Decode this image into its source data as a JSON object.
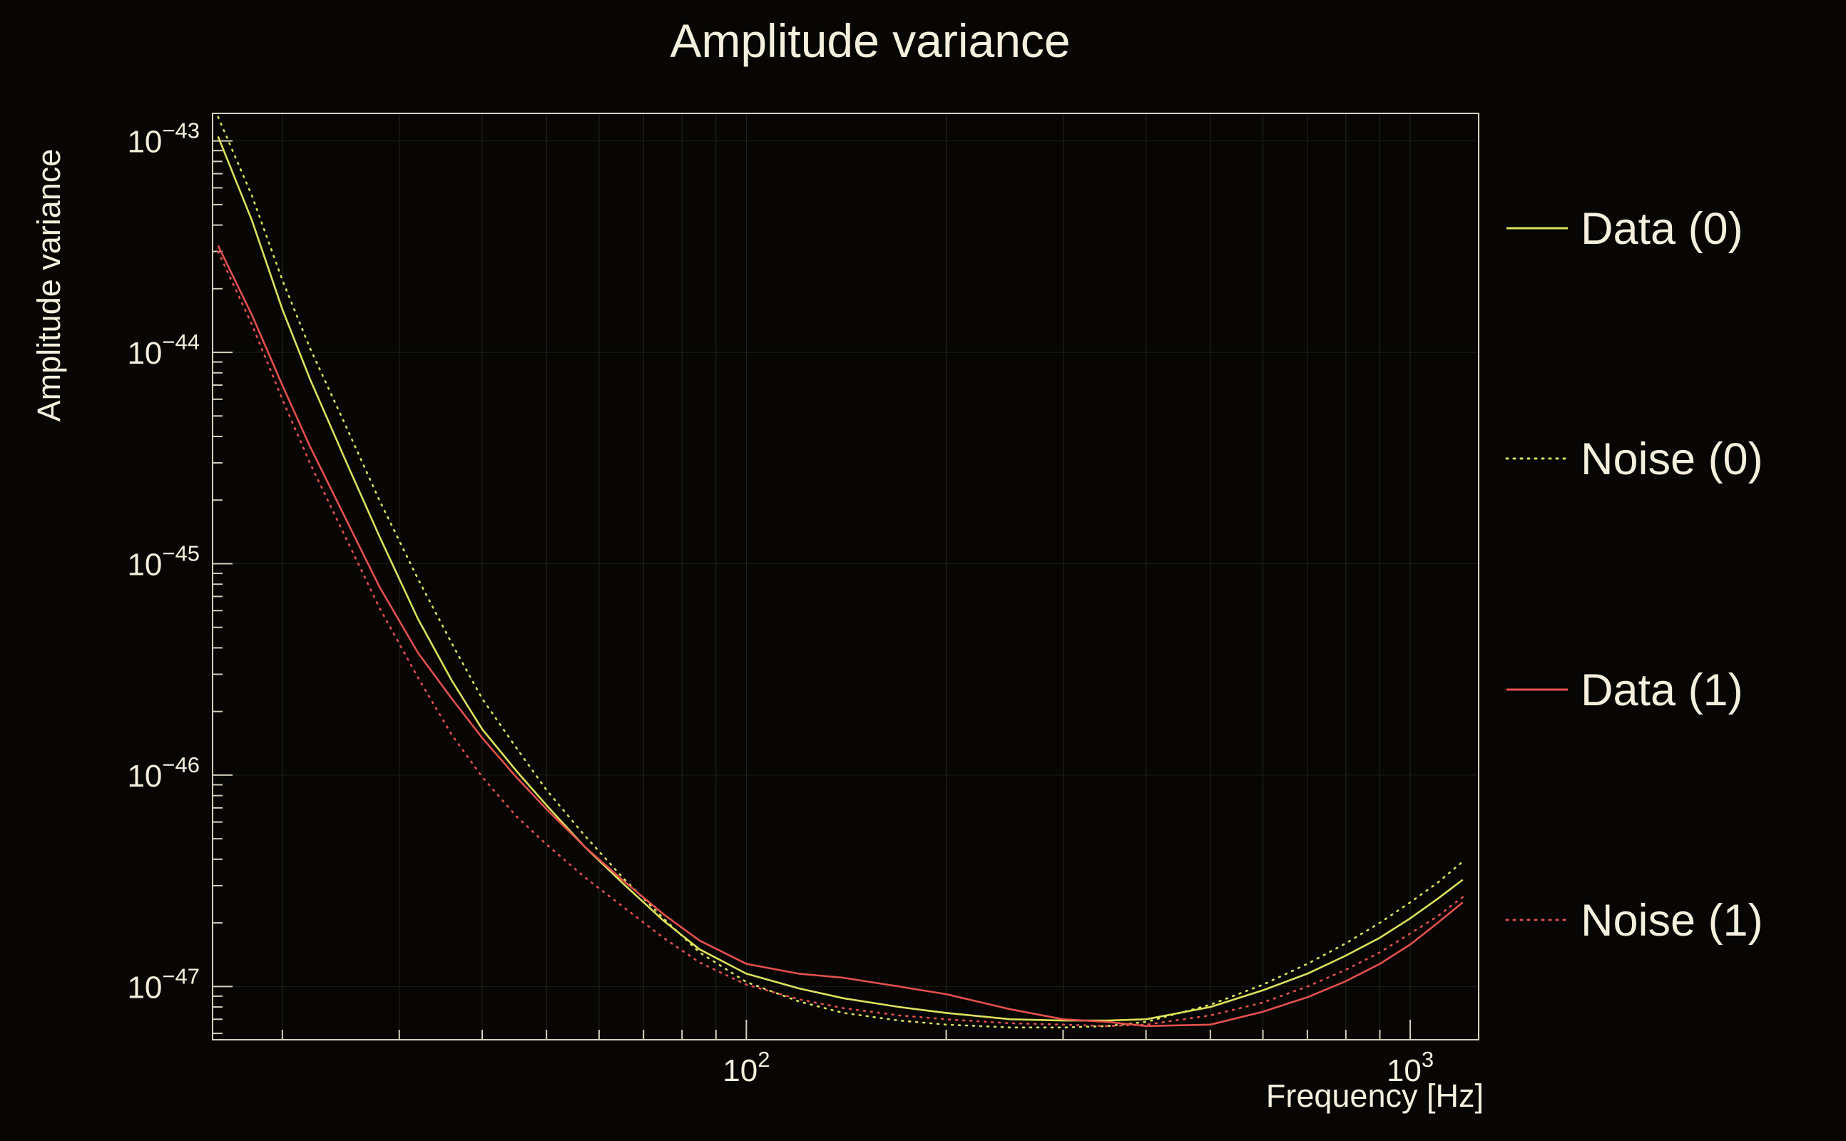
{
  "title": "Amplitude variance",
  "colors": {
    "background": "#070604",
    "text": "#f5efdd",
    "axis": "#d6d0bd",
    "grid": "#242420",
    "grid_h": "#1c1c18",
    "yellow": "#dce15c",
    "red": "#e4504e"
  },
  "chart_data": {
    "type": "line",
    "title": "Amplitude variance",
    "xlabel": "Frequency [Hz]",
    "ylabel": "Amplitude variance",
    "xscale": "log",
    "yscale": "log",
    "xlim": [
      15.7,
      1268
    ],
    "ylim": [
      5.6e-48,
      1.35e-43
    ],
    "x_ticks": [
      {
        "value": 100,
        "exp": "2"
      },
      {
        "value": 1000,
        "exp": "3"
      }
    ],
    "y_ticks": [
      {
        "value": 1e-43,
        "exp": "−43"
      },
      {
        "value": 1e-44,
        "exp": "−44"
      },
      {
        "value": 1e-45,
        "exp": "−45"
      },
      {
        "value": 1e-46,
        "exp": "−46"
      },
      {
        "value": 1e-47,
        "exp": "−47"
      }
    ],
    "legend_position": "right",
    "x": [
      16,
      18,
      20,
      22,
      25,
      28,
      32,
      36,
      40,
      45,
      50,
      57,
      65,
      75,
      85,
      100,
      120,
      140,
      170,
      200,
      250,
      300,
      350,
      400,
      500,
      600,
      700,
      800,
      900,
      1000,
      1100,
      1200
    ],
    "series": [
      {
        "name": "Data (0)",
        "color": "#dce15c",
        "style": "solid",
        "values": [
          1.05e-43,
          4.2e-44,
          1.6e-44,
          7.5e-45,
          3e-45,
          1.35e-45,
          5.5e-46,
          2.8e-46,
          1.65e-46,
          1.05e-46,
          7.2e-47,
          4.6e-47,
          3.1e-47,
          2.05e-47,
          1.5e-47,
          1.15e-47,
          9.8e-48,
          8.8e-48,
          8e-48,
          7.5e-48,
          7e-48,
          6.9e-48,
          6.9e-48,
          7e-48,
          8e-48,
          9.6e-48,
          1.15e-47,
          1.4e-47,
          1.7e-47,
          2.1e-47,
          2.6e-47,
          3.2e-47
        ]
      },
      {
        "name": "Noise (0)",
        "color": "#dce15c",
        "style": "dotted",
        "values": [
          1.3e-43,
          5.5e-44,
          2.2e-44,
          1.05e-44,
          4.4e-45,
          2e-45,
          8.5e-46,
          4.2e-46,
          2.3e-46,
          1.35e-46,
          8.5e-47,
          5.2e-47,
          3.3e-47,
          2.1e-47,
          1.45e-47,
          1.05e-47,
          8.5e-48,
          7.5e-48,
          6.9e-48,
          6.6e-48,
          6.4e-48,
          6.4e-48,
          6.5e-48,
          6.8e-48,
          8.2e-48,
          1.02e-47,
          1.28e-47,
          1.6e-47,
          2e-47,
          2.5e-47,
          3.1e-47,
          3.9e-47
        ]
      },
      {
        "name": "Data (1)",
        "color": "#e4504e",
        "style": "solid",
        "values": [
          3.2e-44,
          1.5e-44,
          7e-45,
          3.6e-45,
          1.6e-45,
          7.8e-46,
          3.8e-46,
          2.3e-46,
          1.5e-46,
          9.8e-47,
          6.9e-47,
          4.6e-47,
          3.2e-47,
          2.2e-47,
          1.65e-47,
          1.28e-47,
          1.15e-47,
          1.1e-47,
          1e-47,
          9.2e-48,
          7.8e-48,
          7e-48,
          6.8e-48,
          6.5e-48,
          6.6e-48,
          7.6e-48,
          8.9e-48,
          1.06e-47,
          1.28e-47,
          1.58e-47,
          2e-47,
          2.5e-47
        ]
      },
      {
        "name": "Noise (1)",
        "color": "#e4504e",
        "style": "dotted",
        "values": [
          3e-44,
          1.35e-44,
          6e-45,
          3e-45,
          1.3e-45,
          6.2e-46,
          2.9e-46,
          1.55e-46,
          9.8e-47,
          6.4e-47,
          4.7e-47,
          3.3e-47,
          2.4e-47,
          1.7e-47,
          1.3e-47,
          1.02e-47,
          8.7e-48,
          7.9e-48,
          7.3e-48,
          7e-48,
          6.7e-48,
          6.6e-48,
          6.5e-48,
          6.6e-48,
          7.3e-48,
          8.4e-48,
          1e-47,
          1.2e-47,
          1.45e-47,
          1.78e-47,
          2.15e-47,
          2.65e-47
        ]
      }
    ]
  }
}
